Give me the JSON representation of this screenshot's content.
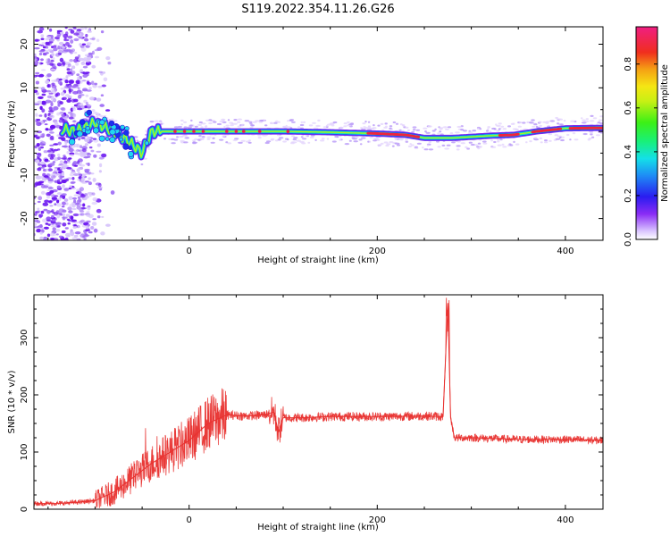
{
  "title": "S119.2022.354.11.26.G26",
  "colors": {
    "snr_line": "#e8302e",
    "band_core": "#e8214a",
    "noise": "#7a20f0"
  },
  "chart_data": [
    {
      "type": "heatmap",
      "xlabel": "Height of straight line (km)",
      "ylabel": "Frequency (Hz)",
      "xlim": [
        -165,
        440
      ],
      "ylim": [
        -25,
        24
      ],
      "xticks": [
        0,
        200,
        400
      ],
      "yticks": [
        -20,
        -10,
        0,
        10,
        20
      ],
      "grid": false,
      "colorbar": {
        "label": "Normalized spectral amplitude",
        "range": [
          0,
          0.97
        ],
        "ticks": [
          0.0,
          0.2,
          0.4,
          0.6,
          0.8
        ],
        "colormap": "rainbow (violet-blue-cyan-green-yellow-red-magenta)"
      },
      "ridge": {
        "x": [
          -135,
          -120,
          -100,
          -80,
          -60,
          -50,
          -40,
          -30,
          0,
          50,
          100,
          150,
          200,
          230,
          250,
          280,
          320,
          345,
          370,
          400,
          440
        ],
        "y": [
          0.5,
          0,
          2,
          0,
          -3,
          -5,
          0,
          0,
          0,
          0,
          0,
          -0.2,
          -0.5,
          -0.8,
          -1.5,
          -1.5,
          -1,
          -0.8,
          0,
          0.7,
          0.8
        ]
      }
    },
    {
      "type": "line",
      "xlabel": "Height of straight line (km)",
      "ylabel": "SNR (10 * v/v)",
      "xlim": [
        -165,
        440
      ],
      "ylim": [
        0,
        375
      ],
      "xticks": [
        0,
        200,
        400
      ],
      "yticks": [
        0,
        100,
        200,
        300
      ],
      "grid": false,
      "series": [
        {
          "x": [
            -165,
            -140,
            -120,
            -100,
            -80,
            -60,
            -40,
            -20,
            -10,
            0,
            20,
            40,
            60,
            80,
            90,
            95,
            100,
            120,
            150,
            200,
            250,
            270,
            275,
            278,
            282,
            300,
            350,
            400,
            440
          ],
          "y": [
            10,
            10,
            12,
            15,
            30,
            55,
            80,
            100,
            110,
            120,
            150,
            165,
            163,
            165,
            170,
            135,
            160,
            160,
            162,
            162,
            163,
            162,
            360,
            160,
            125,
            125,
            122,
            122,
            120
          ]
        }
      ]
    }
  ]
}
